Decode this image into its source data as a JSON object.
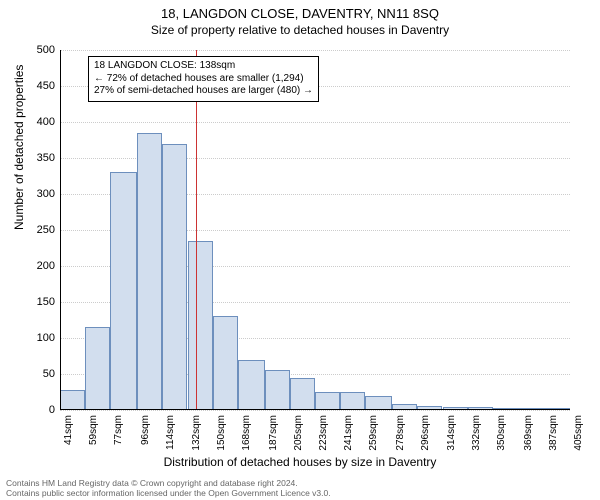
{
  "title": "18, LANGDON CLOSE, DAVENTRY, NN11 8SQ",
  "subtitle": "Size of property relative to detached houses in Daventry",
  "ylabel": "Number of detached properties",
  "xlabel": "Distribution of detached houses by size in Daventry",
  "footer_line1": "Contains HM Land Registry data © Crown copyright and database right 2024.",
  "footer_line2": "Contains public sector information licensed under the Open Government Licence v3.0.",
  "chart": {
    "type": "histogram",
    "ylim": [
      0,
      500
    ],
    "ytick_step": 50,
    "xticks": [
      41,
      59,
      77,
      96,
      114,
      132,
      150,
      168,
      187,
      205,
      223,
      241,
      259,
      278,
      296,
      314,
      332,
      350,
      369,
      387,
      405
    ],
    "xtick_suffix": "sqm",
    "values": [
      28,
      115,
      330,
      385,
      370,
      235,
      130,
      70,
      55,
      45,
      25,
      25,
      20,
      8,
      6,
      4,
      4,
      2,
      2,
      2
    ],
    "bar_fill": "#d2deee",
    "bar_border": "#6d8fbd",
    "grid_color": "#cccccc",
    "background": "#ffffff",
    "vline_x": 138,
    "vline_color": "#cc3333"
  },
  "annotation": {
    "line1": "18 LANGDON CLOSE: 138sqm",
    "line2": "← 72% of detached houses are smaller (1,294)",
    "line3": "27% of semi-detached houses are larger (480) →"
  }
}
